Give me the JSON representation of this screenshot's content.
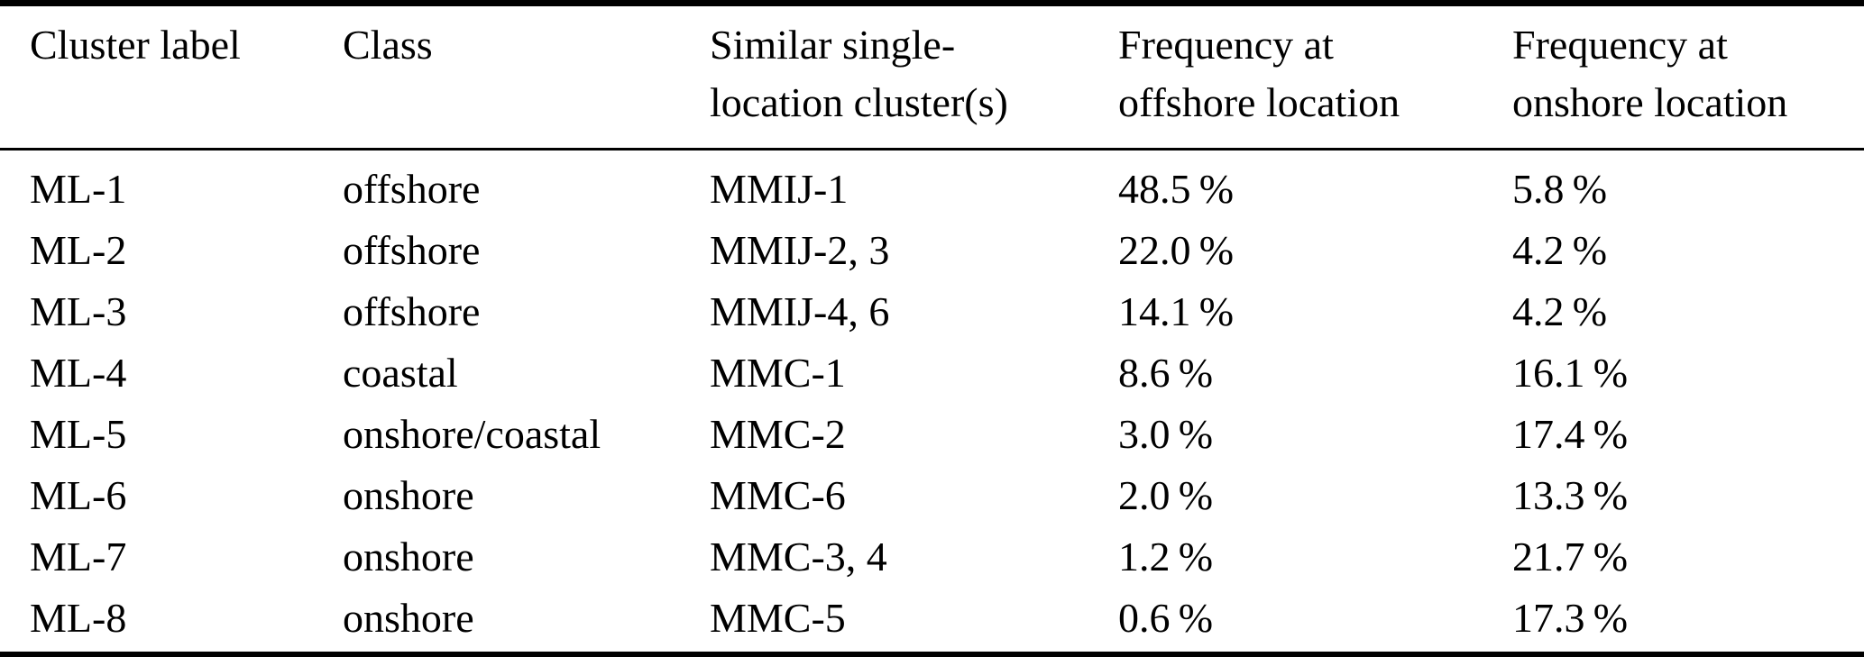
{
  "meta": {
    "background_color": "#ffffff",
    "text_color": "#000000",
    "rule_color": "#000000"
  },
  "table": {
    "columns": [
      {
        "line1": "Cluster label",
        "line2": ""
      },
      {
        "line1": "Class",
        "line2": ""
      },
      {
        "line1": "Similar single-",
        "line2": "location cluster(s)"
      },
      {
        "line1": "Frequency at",
        "line2": "offshore location"
      },
      {
        "line1": "Frequency at",
        "line2": "onshore location"
      }
    ],
    "rows": [
      {
        "cells": [
          "ML-1",
          "offshore",
          "MMIJ-1",
          "48.5 %",
          "5.8 %"
        ]
      },
      {
        "cells": [
          "ML-2",
          "offshore",
          "MMIJ-2, 3",
          "22.0 %",
          "4.2 %"
        ]
      },
      {
        "cells": [
          "ML-3",
          "offshore",
          "MMIJ-4, 6",
          "14.1 %",
          "4.2 %"
        ]
      },
      {
        "cells": [
          "ML-4",
          "coastal",
          "MMC-1",
          "8.6 %",
          "16.1 %"
        ]
      },
      {
        "cells": [
          "ML-5",
          "onshore/coastal",
          "MMC-2",
          "3.0 %",
          "17.4 %"
        ]
      },
      {
        "cells": [
          "ML-6",
          "onshore",
          "MMC-6",
          "2.0 %",
          "13.3 %"
        ]
      },
      {
        "cells": [
          "ML-7",
          "onshore",
          "MMC-3, 4",
          "1.2 %",
          "21.7 %"
        ]
      },
      {
        "cells": [
          "ML-8",
          "onshore",
          "MMC-5",
          "0.6 %",
          "17.3 %"
        ]
      }
    ]
  }
}
